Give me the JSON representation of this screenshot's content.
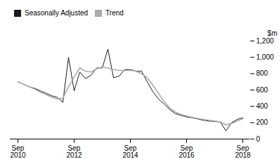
{
  "chart_data": {
    "type": "line",
    "categories": [
      "Sep\n2010",
      null,
      null,
      null,
      null,
      null,
      null,
      null,
      null,
      null,
      "Sep\n2012",
      null,
      null,
      null,
      null,
      null,
      null,
      null,
      null,
      null,
      "Sep\n2014",
      null,
      null,
      null,
      null,
      null,
      null,
      null,
      null,
      null,
      "Sep\n2016",
      null,
      null,
      null,
      null,
      null,
      null,
      null,
      null,
      null,
      "Sep\n2018"
    ],
    "series": [
      {
        "name": "Seasonally Adjusted",
        "color": "#1a1a1a",
        "values": [
          700,
          670,
          640,
          620,
          590,
          560,
          530,
          510,
          450,
          1000,
          590,
          820,
          740,
          780,
          870,
          870,
          1100,
          750,
          770,
          850,
          850,
          830,
          830,
          700,
          580,
          490,
          430,
          360,
          310,
          290,
          270,
          260,
          245,
          230,
          220,
          215,
          210,
          100,
          200,
          240,
          260
        ]
      },
      {
        "name": "Trend",
        "color": "#aaaaaa",
        "values": [
          700,
          670,
          640,
          610,
          575,
          545,
          515,
          490,
          500,
          640,
          760,
          870,
          830,
          820,
          860,
          880,
          870,
          850,
          840,
          840,
          840,
          830,
          800,
          750,
          660,
          560,
          460,
          380,
          330,
          300,
          280,
          265,
          250,
          240,
          230,
          220,
          210,
          175,
          190,
          220,
          250
        ]
      }
    ],
    "ylabel": "$m",
    "ylim": [
      0,
      1200
    ],
    "yticks": [
      0,
      200,
      400,
      600,
      800,
      1000,
      1200
    ],
    "legend": "top-left",
    "grid": false
  }
}
